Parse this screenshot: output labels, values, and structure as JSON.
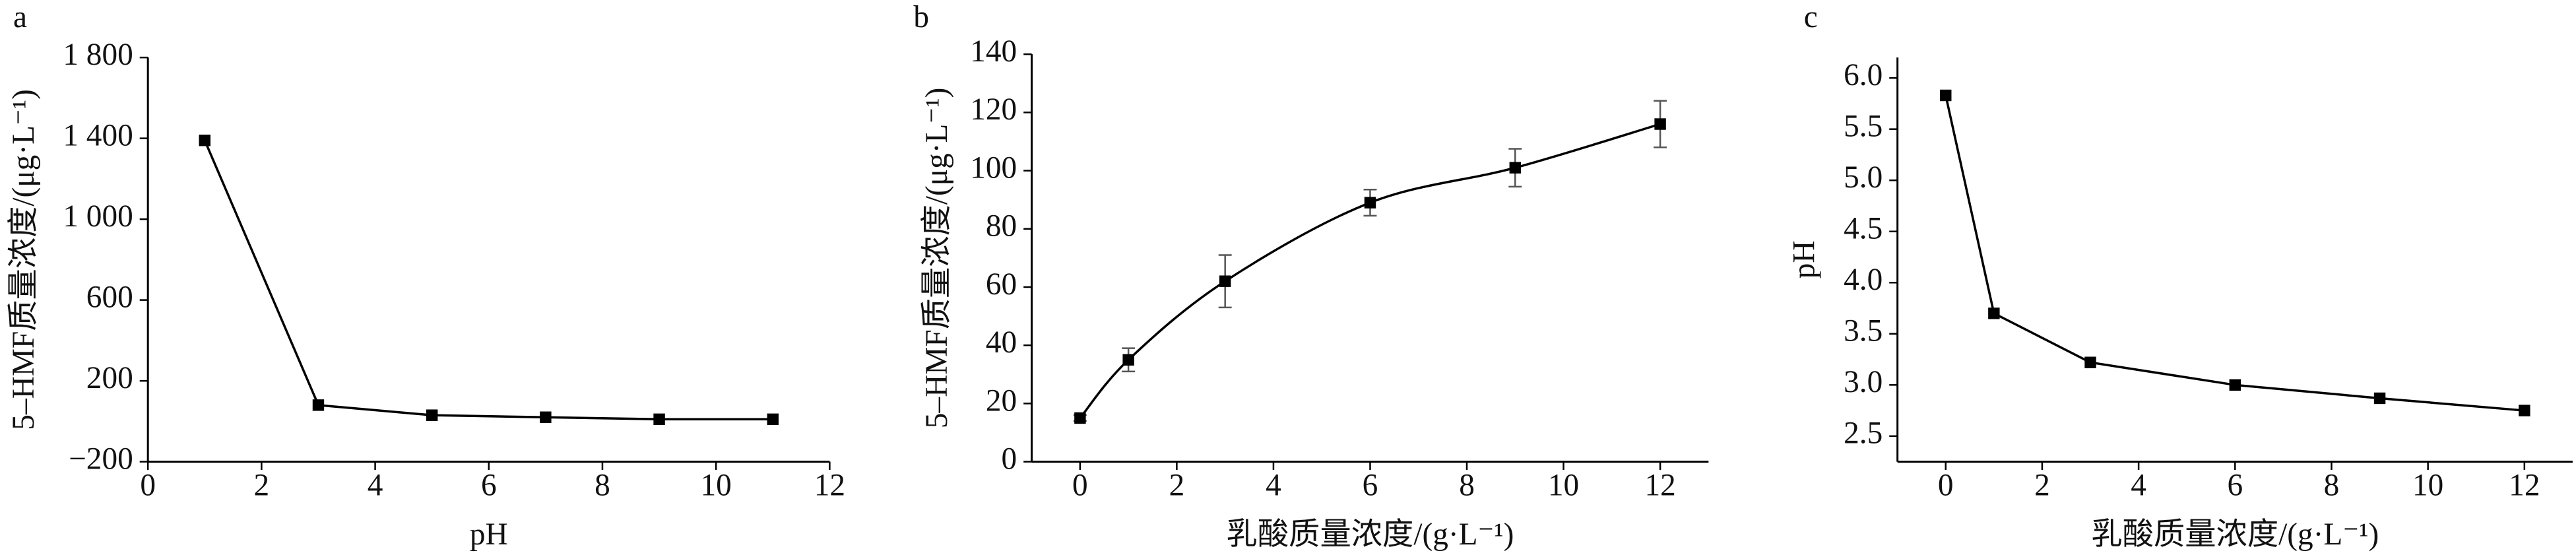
{
  "chart_data": [
    {
      "type": "line",
      "panel": "a",
      "xlabel": "pH",
      "ylabel": "5–HMF质量浓度/(μg·L⁻¹)",
      "x": [
        1,
        3,
        5,
        7,
        9,
        11
      ],
      "series": [
        {
          "color": "#000000",
          "values": [
            1390,
            80,
            30,
            20,
            10,
            10
          ]
        }
      ],
      "xlim": [
        0,
        12
      ],
      "xticks": [
        0,
        2,
        4,
        6,
        8,
        10,
        12
      ],
      "ylim": [
        -200,
        1800
      ],
      "yticks": [
        {
          "value": -200,
          "label": "−200"
        },
        200,
        600,
        {
          "value": 1000,
          "label": "1 000"
        },
        {
          "value": 1400,
          "label": "1 400"
        },
        {
          "value": 1800,
          "label": "1 800"
        }
      ]
    },
    {
      "type": "line",
      "panel": "b",
      "xlabel": "乳酸质量浓度/(g·L⁻¹)",
      "ylabel": "5–HMF质量浓度/(μg·L⁻¹)",
      "x": [
        0,
        1,
        3,
        6,
        9,
        12
      ],
      "series": [
        {
          "color": "#000000",
          "values": [
            15,
            35,
            62,
            89,
            101,
            116
          ],
          "errors": [
            1,
            4,
            9,
            4.5,
            6.5,
            8
          ]
        }
      ],
      "smooth": true,
      "xlim": [
        -1,
        13
      ],
      "xticks": [
        0,
        2,
        4,
        6,
        8,
        10,
        12
      ],
      "ylim": [
        0,
        140
      ],
      "yticks": [
        0,
        20,
        40,
        60,
        80,
        100,
        120,
        140
      ]
    },
    {
      "type": "line",
      "panel": "c",
      "xlabel": "乳酸质量浓度/(g·L⁻¹)",
      "ylabel": "pH",
      "x": [
        0,
        1,
        3,
        6,
        9,
        12
      ],
      "series": [
        {
          "color": "#000000",
          "values": [
            5.83,
            3.7,
            3.22,
            3.0,
            2.87,
            2.75
          ]
        }
      ],
      "xlim": [
        -1,
        13
      ],
      "xticks": [
        0,
        2,
        4,
        6,
        8,
        10,
        12
      ],
      "ylim": [
        2.25,
        6.2
      ],
      "yticks": [
        2.5,
        {
          "value": 3,
          "label": "3.0"
        },
        3.5,
        {
          "value": 4,
          "label": "4.0"
        },
        4.5,
        {
          "value": 5,
          "label": "5.0"
        },
        5.5,
        {
          "value": 6,
          "label": "6.0"
        }
      ]
    }
  ]
}
